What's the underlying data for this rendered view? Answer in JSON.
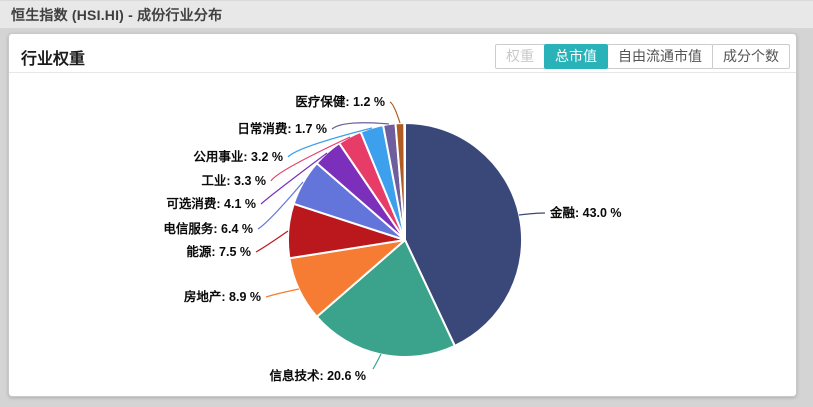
{
  "window": {
    "title": "恒生指数 (HSI.HI) - 成份行业分布"
  },
  "panel": {
    "title": "行业权重",
    "view_buttons": [
      {
        "label": "权重",
        "state": "disabled"
      },
      {
        "label": "总市值",
        "state": "active"
      },
      {
        "label": "自由流通市值",
        "state": "normal"
      },
      {
        "label": "成分个数",
        "state": "normal"
      }
    ],
    "accent_color": "#29b3b9"
  },
  "chart_data": {
    "type": "pie",
    "title": "行业权重",
    "unit": "%",
    "label_format": "{name}: {value} %",
    "start_angle": "top",
    "direction": "clockwise",
    "legend_position": "none",
    "slices": [
      {
        "key": "financials",
        "name": "金融",
        "value": 43.0,
        "color": "#3a4879"
      },
      {
        "key": "information-technology",
        "name": "信息技术",
        "value": 20.6,
        "color": "#3ba28b"
      },
      {
        "key": "real-estate",
        "name": "房地产",
        "value": 8.9,
        "color": "#f67b33"
      },
      {
        "key": "energy",
        "name": "能源",
        "value": 7.5,
        "color": "#bb181d"
      },
      {
        "key": "telecom-services",
        "name": "电信服务",
        "value": 6.4,
        "color": "#6374db"
      },
      {
        "key": "consumer-discretionary",
        "name": "可选消费",
        "value": 4.1,
        "color": "#7c2fbb"
      },
      {
        "key": "industrials",
        "name": "工业",
        "value": 3.3,
        "color": "#e73c67"
      },
      {
        "key": "utilities",
        "name": "公用事业",
        "value": 3.2,
        "color": "#3da0ec"
      },
      {
        "key": "consumer-staples",
        "name": "日常消费",
        "value": 1.7,
        "color": "#6f5e9e"
      },
      {
        "key": "health-care",
        "name": "医疗保健",
        "value": 1.2,
        "color": "#ae5c22"
      }
    ]
  }
}
